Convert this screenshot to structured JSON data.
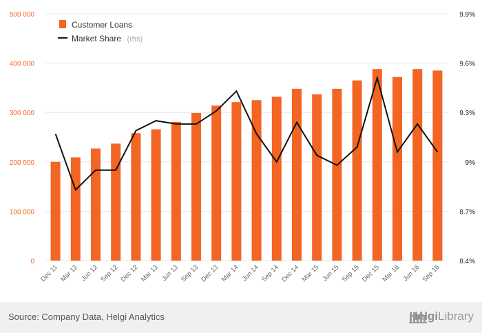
{
  "chart_data": {
    "type": "bar",
    "categories": [
      "Dec 11",
      "Mar 12",
      "Jun 12",
      "Sep 12",
      "Dec 12",
      "Mar 13",
      "Jun 13",
      "Sep 13",
      "Dec 13",
      "Mar 14",
      "Jun 14",
      "Sep 14",
      "Dec 14",
      "Mar 15",
      "Jun 15",
      "Sep 15",
      "Dec 15",
      "Mar 16",
      "Jun 16",
      "Sep 16"
    ],
    "series": [
      {
        "name": "Customer Loans",
        "type": "bar",
        "axis": "left",
        "color": "#f26522",
        "values": [
          200000,
          209000,
          227000,
          237000,
          258000,
          266000,
          281000,
          299000,
          314000,
          321000,
          325000,
          332000,
          348000,
          337000,
          348000,
          365000,
          388000,
          372000,
          388000,
          385000
        ]
      },
      {
        "name": "Market Share",
        "suffix": "(rhs)",
        "type": "line",
        "axis": "right",
        "color": "#111111",
        "values": [
          9.17,
          8.83,
          8.95,
          8.95,
          9.19,
          9.25,
          9.23,
          9.23,
          9.31,
          9.43,
          9.17,
          9.0,
          9.24,
          9.04,
          8.98,
          9.09,
          9.51,
          9.06,
          9.23,
          9.06
        ]
      }
    ],
    "left_axis": {
      "ylim": [
        0,
        500000
      ],
      "ticks": [
        0,
        100000,
        200000,
        300000,
        400000,
        500000
      ],
      "tick_labels": [
        "0",
        "100 000",
        "200 000",
        "300 000",
        "400 000",
        "500 000"
      ]
    },
    "right_axis": {
      "ylim": [
        8.4,
        9.9
      ],
      "ticks": [
        8.4,
        8.7,
        9.0,
        9.3,
        9.6,
        9.9
      ],
      "tick_labels": [
        "8.4%",
        "8.7%",
        "9%",
        "9.3%",
        "9.6%",
        "9.9%"
      ]
    },
    "grid": true,
    "legend_position": "top-left"
  },
  "footer": {
    "source": "Source: Company Data, Helgi Analytics",
    "brand_bold": "Helgi",
    "brand_rest": "Library"
  },
  "colors": {
    "bar": "#f26522",
    "line": "#111111",
    "grid": "#e6e6e6",
    "footer_bg": "#f0f0f0"
  }
}
